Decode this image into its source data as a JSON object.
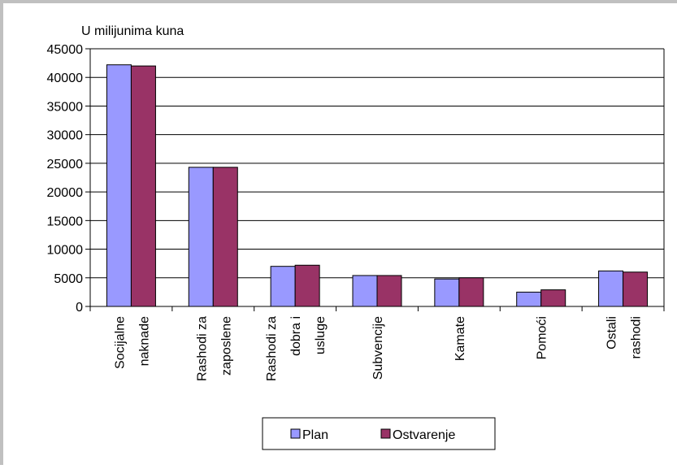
{
  "chart_data": {
    "type": "bar",
    "title": "",
    "unit_label": "U milijunima kuna",
    "xlabel": "",
    "ylabel": "",
    "categories": [
      [
        "Socijalne",
        "naknade"
      ],
      [
        "Rashodi za",
        "zaposlene"
      ],
      [
        "Rashodi za",
        "dobra i",
        "usluge"
      ],
      [
        "Subvencije"
      ],
      [
        "Kamate"
      ],
      [
        "Pomoći"
      ],
      [
        "Ostali",
        "rashodi"
      ]
    ],
    "series": [
      {
        "name": "Plan",
        "color": "#9999ff",
        "values": [
          42200,
          24300,
          7000,
          5400,
          4800,
          2500,
          6200
        ]
      },
      {
        "name": "Ostvarenje",
        "color": "#993366",
        "values": [
          42000,
          24300,
          7200,
          5400,
          5000,
          2900,
          6000
        ]
      }
    ],
    "ylim": [
      0,
      45000
    ],
    "yticks": [
      "0",
      "5000",
      "10000",
      "15000",
      "20000",
      "25000",
      "30000",
      "35000",
      "40000",
      "45000"
    ],
    "grid": true,
    "legend_position": "bottom"
  }
}
